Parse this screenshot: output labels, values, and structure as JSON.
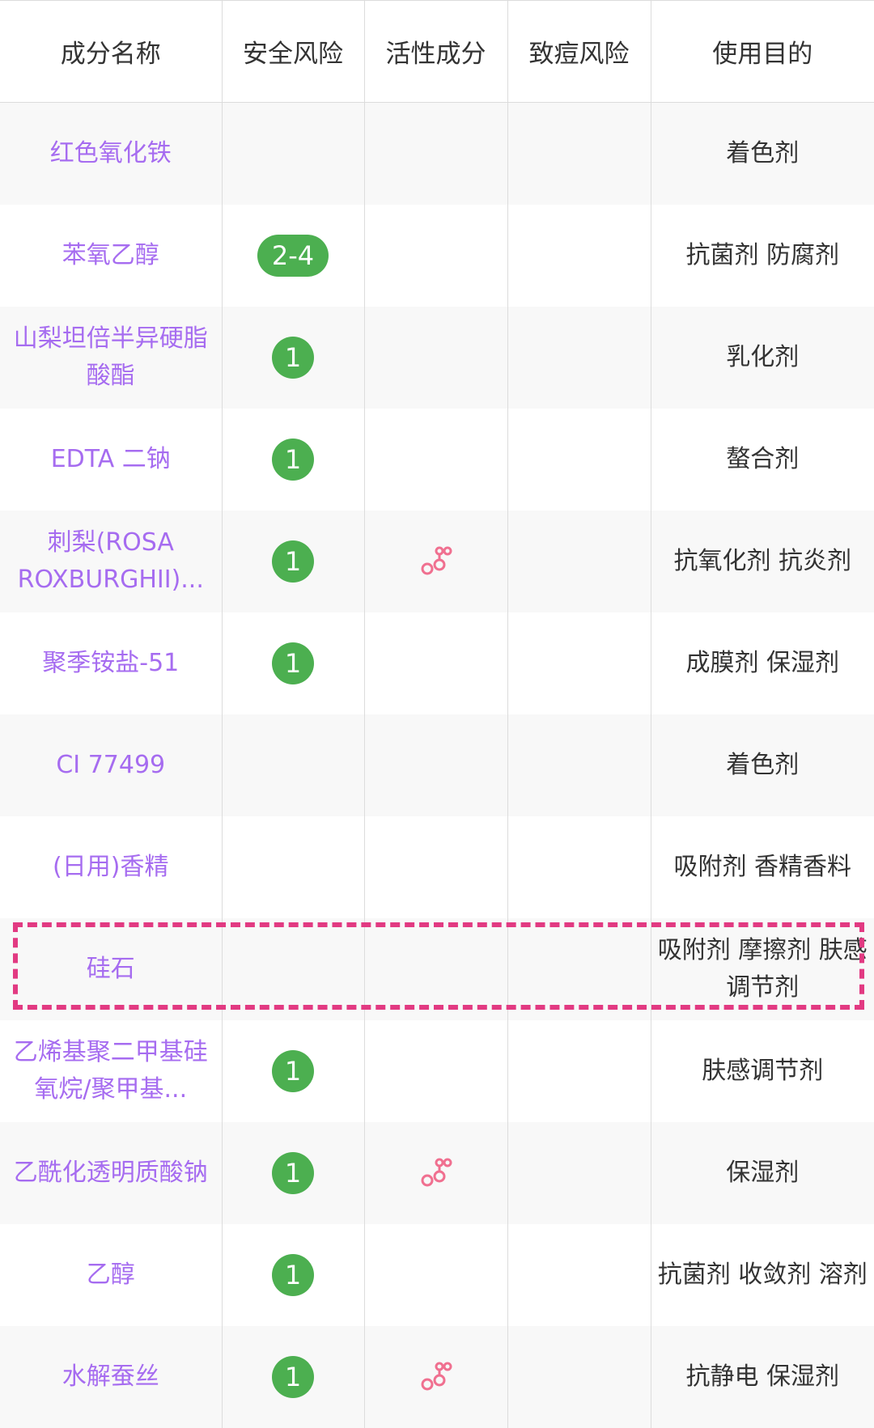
{
  "headers": [
    "成分名称",
    "安全风险",
    "活性成分",
    "致痘风险",
    "使用目的"
  ],
  "colors": {
    "name": "#a66cf0",
    "badge": "#4caf50",
    "active_icon": "#f07090",
    "highlight": "#e23a82"
  },
  "rows": [
    {
      "name": "红色氧化铁",
      "safety": "",
      "active": false,
      "acne": "",
      "purpose": "着色剂"
    },
    {
      "name": "苯氧乙醇",
      "safety": "2-4",
      "active": false,
      "acne": "",
      "purpose": "抗菌剂 防腐剂"
    },
    {
      "name": "山梨坦倍半异硬脂酸酯",
      "safety": "1",
      "active": false,
      "acne": "",
      "purpose": "乳化剂"
    },
    {
      "name": "EDTA 二钠",
      "safety": "1",
      "active": false,
      "acne": "",
      "purpose": "螯合剂"
    },
    {
      "name": "刺梨(ROSA ROXBURGHII)...",
      "safety": "1",
      "active": true,
      "acne": "",
      "purpose": "抗氧化剂 抗炎剂"
    },
    {
      "name": "聚季铵盐-51",
      "safety": "1",
      "active": false,
      "acne": "",
      "purpose": "成膜剂 保湿剂"
    },
    {
      "name": "CI 77499",
      "safety": "",
      "active": false,
      "acne": "",
      "purpose": "着色剂"
    },
    {
      "name": "(日用)香精",
      "safety": "",
      "active": false,
      "acne": "",
      "purpose": "吸附剂 香精香料"
    },
    {
      "name": "硅石",
      "safety": "",
      "active": false,
      "acne": "",
      "purpose": "吸附剂 摩擦剂 肤感调节剂",
      "highlighted": true
    },
    {
      "name": "乙烯基聚二甲基硅氧烷/聚甲基...",
      "safety": "1",
      "active": false,
      "acne": "",
      "purpose": "肤感调节剂"
    },
    {
      "name": "乙酰化透明质酸钠",
      "safety": "1",
      "active": true,
      "acne": "",
      "purpose": "保湿剂"
    },
    {
      "name": "乙醇",
      "safety": "1",
      "active": false,
      "acne": "",
      "purpose": "抗菌剂 收敛剂 溶剂"
    },
    {
      "name": "水解蚕丝",
      "safety": "1",
      "active": true,
      "acne": "",
      "purpose": "抗静电 保湿剂"
    }
  ]
}
